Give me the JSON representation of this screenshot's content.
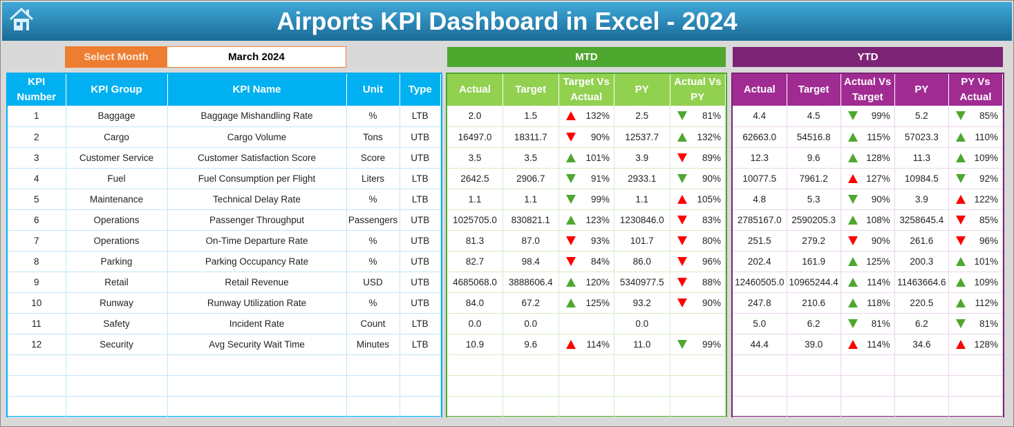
{
  "title": "Airports KPI Dashboard in Excel - 2024",
  "select_month": {
    "label": "Select Month",
    "value": "March 2024"
  },
  "colors": {
    "kpi": "#00b0f0",
    "mtd_band": "#4ea72e",
    "mtd_head": "#92d050",
    "ytd_band": "#7b2374",
    "ytd_head": "#a02b93",
    "red": "#ff0000",
    "green": "#4ea72e",
    "orange": "#ed7d31"
  },
  "mtd_label": "MTD",
  "ytd_label": "YTD",
  "kpi_headers": [
    "KPI Number",
    "KPI Group",
    "KPI Name",
    "Unit",
    "Type"
  ],
  "mtd_headers": [
    "Actual",
    "Target",
    "Target Vs Actual",
    "PY",
    "Actual Vs PY"
  ],
  "ytd_headers": [
    "Actual",
    "Target",
    "Actual Vs Target",
    "PY",
    "PY Vs Actual"
  ],
  "rows": [
    {
      "kpi": [
        "1",
        "Baggage",
        "Baggage Mishandling Rate",
        "%",
        "LTB"
      ],
      "mtd": [
        "2.0",
        "1.5",
        {
          "dir": "up",
          "color": "red",
          "val": "132%"
        },
        "2.5",
        {
          "dir": "down",
          "color": "green",
          "val": "81%"
        }
      ],
      "ytd": [
        "4.4",
        "4.5",
        {
          "dir": "down",
          "color": "green",
          "val": "99%"
        },
        "5.2",
        {
          "dir": "down",
          "color": "green",
          "val": "85%"
        }
      ]
    },
    {
      "kpi": [
        "2",
        "Cargo",
        "Cargo Volume",
        "Tons",
        "UTB"
      ],
      "mtd": [
        "16497.0",
        "18311.7",
        {
          "dir": "down",
          "color": "red",
          "val": "90%"
        },
        "12537.7",
        {
          "dir": "up",
          "color": "green",
          "val": "132%"
        }
      ],
      "ytd": [
        "62663.0",
        "54516.8",
        {
          "dir": "up",
          "color": "green",
          "val": "115%"
        },
        "57023.3",
        {
          "dir": "up",
          "color": "green",
          "val": "110%"
        }
      ]
    },
    {
      "kpi": [
        "3",
        "Customer Service",
        "Customer Satisfaction Score",
        "Score",
        "UTB"
      ],
      "mtd": [
        "3.5",
        "3.5",
        {
          "dir": "up",
          "color": "green",
          "val": "101%"
        },
        "3.9",
        {
          "dir": "down",
          "color": "red",
          "val": "89%"
        }
      ],
      "ytd": [
        "12.3",
        "9.6",
        {
          "dir": "up",
          "color": "green",
          "val": "128%"
        },
        "11.3",
        {
          "dir": "up",
          "color": "green",
          "val": "109%"
        }
      ]
    },
    {
      "kpi": [
        "4",
        "Fuel",
        "Fuel Consumption per Flight",
        "Liters",
        "LTB"
      ],
      "mtd": [
        "2642.5",
        "2906.7",
        {
          "dir": "down",
          "color": "green",
          "val": "91%"
        },
        "2933.1",
        {
          "dir": "down",
          "color": "green",
          "val": "90%"
        }
      ],
      "ytd": [
        "10077.5",
        "7961.2",
        {
          "dir": "up",
          "color": "red",
          "val": "127%"
        },
        "10984.5",
        {
          "dir": "down",
          "color": "green",
          "val": "92%"
        }
      ]
    },
    {
      "kpi": [
        "5",
        "Maintenance",
        "Technical Delay Rate",
        "%",
        "LTB"
      ],
      "mtd": [
        "1.1",
        "1.1",
        {
          "dir": "down",
          "color": "green",
          "val": "99%"
        },
        "1.1",
        {
          "dir": "up",
          "color": "red",
          "val": "105%"
        }
      ],
      "ytd": [
        "4.8",
        "5.3",
        {
          "dir": "down",
          "color": "green",
          "val": "90%"
        },
        "3.9",
        {
          "dir": "up",
          "color": "red",
          "val": "122%"
        }
      ]
    },
    {
      "kpi": [
        "6",
        "Operations",
        "Passenger Throughput",
        "Passengers",
        "UTB"
      ],
      "mtd": [
        "1025705.0",
        "830821.1",
        {
          "dir": "up",
          "color": "green",
          "val": "123%"
        },
        "1230846.0",
        {
          "dir": "down",
          "color": "red",
          "val": "83%"
        }
      ],
      "ytd": [
        "2785167.0",
        "2590205.3",
        {
          "dir": "up",
          "color": "green",
          "val": "108%"
        },
        "3258645.4",
        {
          "dir": "down",
          "color": "red",
          "val": "85%"
        }
      ]
    },
    {
      "kpi": [
        "7",
        "Operations",
        "On-Time Departure Rate",
        "%",
        "UTB"
      ],
      "mtd": [
        "81.3",
        "87.0",
        {
          "dir": "down",
          "color": "red",
          "val": "93%"
        },
        "101.7",
        {
          "dir": "down",
          "color": "red",
          "val": "80%"
        }
      ],
      "ytd": [
        "251.5",
        "279.2",
        {
          "dir": "down",
          "color": "red",
          "val": "90%"
        },
        "261.6",
        {
          "dir": "down",
          "color": "red",
          "val": "96%"
        }
      ]
    },
    {
      "kpi": [
        "8",
        "Parking",
        "Parking Occupancy Rate",
        "%",
        "UTB"
      ],
      "mtd": [
        "82.7",
        "98.4",
        {
          "dir": "down",
          "color": "red",
          "val": "84%"
        },
        "86.0",
        {
          "dir": "down",
          "color": "red",
          "val": "96%"
        }
      ],
      "ytd": [
        "202.4",
        "161.9",
        {
          "dir": "up",
          "color": "green",
          "val": "125%"
        },
        "200.3",
        {
          "dir": "up",
          "color": "green",
          "val": "101%"
        }
      ]
    },
    {
      "kpi": [
        "9",
        "Retail",
        "Retail Revenue",
        "USD",
        "UTB"
      ],
      "mtd": [
        "4685068.0",
        "3888606.4",
        {
          "dir": "up",
          "color": "green",
          "val": "120%"
        },
        "5340977.5",
        {
          "dir": "down",
          "color": "red",
          "val": "88%"
        }
      ],
      "ytd": [
        "12460505.0",
        "10965244.4",
        {
          "dir": "up",
          "color": "green",
          "val": "114%"
        },
        "11463664.6",
        {
          "dir": "up",
          "color": "green",
          "val": "109%"
        }
      ]
    },
    {
      "kpi": [
        "10",
        "Runway",
        "Runway Utilization Rate",
        "%",
        "UTB"
      ],
      "mtd": [
        "84.0",
        "67.2",
        {
          "dir": "up",
          "color": "green",
          "val": "125%"
        },
        "93.2",
        {
          "dir": "down",
          "color": "red",
          "val": "90%"
        }
      ],
      "ytd": [
        "247.8",
        "210.6",
        {
          "dir": "up",
          "color": "green",
          "val": "118%"
        },
        "220.5",
        {
          "dir": "up",
          "color": "green",
          "val": "112%"
        }
      ]
    },
    {
      "kpi": [
        "11",
        "Safety",
        "Incident Rate",
        "Count",
        "LTB"
      ],
      "mtd": [
        "0.0",
        "0.0",
        null,
        "0.0",
        null
      ],
      "ytd": [
        "5.0",
        "6.2",
        {
          "dir": "down",
          "color": "green",
          "val": "81%"
        },
        "6.2",
        {
          "dir": "down",
          "color": "green",
          "val": "81%"
        }
      ]
    },
    {
      "kpi": [
        "12",
        "Security",
        "Avg Security Wait Time",
        "Minutes",
        "LTB"
      ],
      "mtd": [
        "10.9",
        "9.6",
        {
          "dir": "up",
          "color": "red",
          "val": "114%"
        },
        "11.0",
        {
          "dir": "down",
          "color": "green",
          "val": "99%"
        }
      ],
      "ytd": [
        "44.4",
        "39.0",
        {
          "dir": "up",
          "color": "red",
          "val": "114%"
        },
        "34.6",
        {
          "dir": "up",
          "color": "red",
          "val": "128%"
        }
      ]
    }
  ]
}
